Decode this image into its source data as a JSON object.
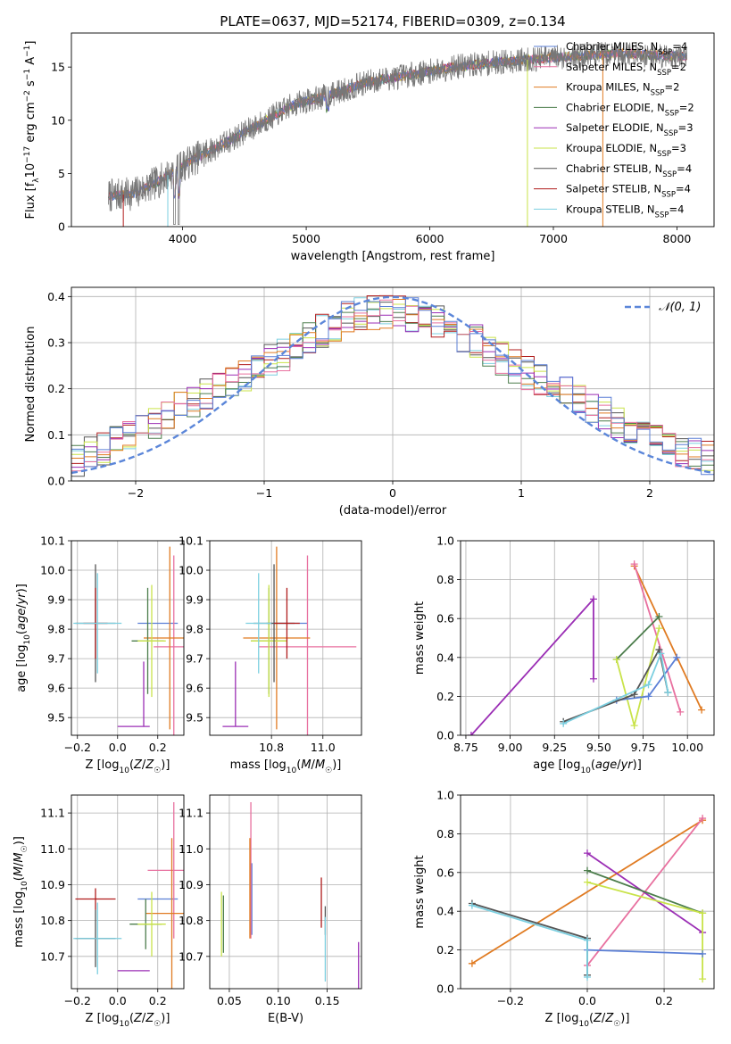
{
  "colors": {
    "Chabrier MILES": "#5b7fd6",
    "Salpeter MILES": "#e8709f",
    "Kroupa MILES": "#e07b22",
    "Chabrier ELODIE": "#4c7d4c",
    "Salpeter ELODIE": "#9b2fb5",
    "Kroupa ELODIE": "#c9e34a",
    "Chabrier STELIB": "#555555",
    "Salpeter STELIB": "#b01c1c",
    "Kroupa STELIB": "#7ccfe0",
    "gauss": "#5b86d9"
  },
  "chart_data": [
    {
      "id": "spectrum",
      "type": "line",
      "title": "PLATE=0637, MJD=52174, FIBERID=0309, z=0.134",
      "xlabel": "wavelength [Angstrom, rest frame]",
      "ylabel": "Flux [f",
      "xlim": [
        3100,
        8300
      ],
      "ylim": [
        0,
        18.2
      ],
      "xticks": [
        "4000",
        "5000",
        "6000",
        "7000",
        "8000"
      ],
      "yticks": [
        "0",
        "5",
        "10",
        "15"
      ],
      "grid": false,
      "legend_position": "right",
      "legend": [
        {
          "name": "Chabrier MILES",
          "nssp": "4"
        },
        {
          "name": "Salpeter MILES",
          "nssp": "2"
        },
        {
          "name": "Kroupa MILES",
          "nssp": "2"
        },
        {
          "name": "Chabrier ELODIE",
          "nssp": "2"
        },
        {
          "name": "Salpeter ELODIE",
          "nssp": "3"
        },
        {
          "name": "Kroupa ELODIE",
          "nssp": "3"
        },
        {
          "name": "Chabrier STELIB",
          "nssp": "4"
        },
        {
          "name": "Salpeter STELIB",
          "nssp": "4"
        },
        {
          "name": "Kroupa STELIB",
          "nssp": "4"
        }
      ],
      "observed_flux_shape": [
        [
          3400,
          2.9
        ],
        [
          3600,
          3.1
        ],
        [
          3800,
          4.2
        ],
        [
          3950,
          5.4
        ],
        [
          4100,
          6.4
        ],
        [
          4300,
          7.6
        ],
        [
          4600,
          9.5
        ],
        [
          4900,
          11.5
        ],
        [
          5200,
          12.4
        ],
        [
          5500,
          13.6
        ],
        [
          5800,
          14.2
        ],
        [
          6200,
          15.0
        ],
        [
          6600,
          15.5
        ],
        [
          7000,
          15.9
        ],
        [
          7500,
          16.3
        ],
        [
          8000,
          16.0
        ]
      ]
    },
    {
      "id": "residuals",
      "type": "line",
      "xlabel": "(data-model)/error",
      "ylabel": "Normed distribution",
      "xlim": [
        -2.5,
        2.5
      ],
      "ylim": [
        0,
        0.42
      ],
      "xticks": [
        "−2",
        "−1",
        "0",
        "1",
        "2"
      ],
      "yticks": [
        "0.0",
        "0.1",
        "0.2",
        "0.3",
        "0.4"
      ],
      "grid": true,
      "legend_position": "top-right",
      "legend_label": "𝒩(0, 1)",
      "histogram_envelope": [
        [
          -2.5,
          0.04
        ],
        [
          -2.0,
          0.1
        ],
        [
          -1.5,
          0.18
        ],
        [
          -1.0,
          0.25
        ],
        [
          -0.6,
          0.32
        ],
        [
          -0.3,
          0.36
        ],
        [
          0.0,
          0.37
        ],
        [
          0.3,
          0.35
        ],
        [
          0.6,
          0.31
        ],
        [
          1.0,
          0.24
        ],
        [
          1.5,
          0.17
        ],
        [
          2.0,
          0.09
        ],
        [
          2.5,
          0.045
        ]
      ]
    },
    {
      "id": "age-vs-Z",
      "type": "scatter",
      "xlabel": "Z [log",
      "ylabel": "age  [log",
      "xlim": [
        -0.23,
        0.33
      ],
      "ylim": [
        9.44,
        10.1
      ],
      "xticks": [
        "−0.2",
        "0.0",
        "0.2"
      ],
      "yticks": [
        "9.5",
        "9.6",
        "9.7",
        "9.8",
        "9.9",
        "10.0",
        "10.1"
      ],
      "grid": true,
      "points": [
        {
          "series": "Chabrier MILES",
          "x": 0.2,
          "y": 9.82,
          "xerr": 0.1,
          "yerr": 0.0
        },
        {
          "series": "Salpeter MILES",
          "x": 0.28,
          "y": 9.74,
          "xerr": 0.1,
          "yerr": 0.31
        },
        {
          "series": "Kroupa MILES",
          "x": 0.26,
          "y": 9.77,
          "xerr": 0.13,
          "yerr": 0.31
        },
        {
          "series": "Chabrier ELODIE",
          "x": 0.15,
          "y": 9.76,
          "xerr": 0.08,
          "yerr": 0.18
        },
        {
          "series": "Salpeter ELODIE",
          "x": 0.08,
          "y": 9.47,
          "xerr": 0.08,
          "yerr": 0.0
        },
        {
          "series": "Salpeter ELODIE",
          "x": 0.13,
          "y": 9.58,
          "xerr": 0.0,
          "yerr": 0.11
        },
        {
          "series": "Kroupa ELODIE",
          "x": 0.17,
          "y": 9.76,
          "xerr": 0.07,
          "yerr": 0.19
        },
        {
          "series": "Chabrier STELIB",
          "x": -0.11,
          "y": 9.82,
          "xerr": 0.1,
          "yerr": 0.2
        },
        {
          "series": "Salpeter STELIB",
          "x": -0.11,
          "y": 9.82,
          "xerr": 0.06,
          "yerr": 0.12
        },
        {
          "series": "Kroupa STELIB",
          "x": -0.1,
          "y": 9.82,
          "xerr": 0.12,
          "yerr": 0.17
        }
      ]
    },
    {
      "id": "age-vs-mass",
      "type": "scatter",
      "xlabel": "mass [log",
      "ylabel": "",
      "xlim": [
        10.56,
        11.15
      ],
      "ylim": [
        9.44,
        10.1
      ],
      "xticks": [
        "10.8",
        "11.0"
      ],
      "yticks": [
        "9.5",
        "9.6",
        "9.7",
        "9.8",
        "9.9",
        "10.0",
        "10.1"
      ],
      "grid": true,
      "points": [
        {
          "series": "Chabrier MILES",
          "x": 10.86,
          "y": 9.82,
          "xerr": 0.08,
          "yerr": 0.0
        },
        {
          "series": "Salpeter MILES",
          "x": 10.94,
          "y": 9.74,
          "xerr": 0.19,
          "yerr": 0.31
        },
        {
          "series": "Kroupa MILES",
          "x": 10.82,
          "y": 9.77,
          "xerr": 0.13,
          "yerr": 0.31
        },
        {
          "series": "Chabrier ELODIE",
          "x": 10.79,
          "y": 9.76,
          "xerr": 0.07,
          "yerr": 0.18
        },
        {
          "series": "Salpeter ELODIE",
          "x": 10.66,
          "y": 9.47,
          "xerr": 0.05,
          "yerr": 0.0
        },
        {
          "series": "Salpeter ELODIE",
          "x": 10.66,
          "y": 9.58,
          "xerr": 0.0,
          "yerr": 0.11
        },
        {
          "series": "Kroupa ELODIE",
          "x": 10.79,
          "y": 9.76,
          "xerr": 0.07,
          "yerr": 0.19
        },
        {
          "series": "Chabrier STELIB",
          "x": 10.81,
          "y": 9.82,
          "xerr": 0.08,
          "yerr": 0.2
        },
        {
          "series": "Salpeter STELIB",
          "x": 10.86,
          "y": 9.82,
          "xerr": 0.05,
          "yerr": 0.12
        },
        {
          "series": "Kroupa STELIB",
          "x": 10.75,
          "y": 9.82,
          "xerr": 0.05,
          "yerr": 0.17
        }
      ]
    },
    {
      "id": "weight-vs-age",
      "type": "line",
      "xlabel": "age  [log",
      "ylabel": "mass weight",
      "xlim": [
        8.72,
        10.15
      ],
      "ylim": [
        0.0,
        1.0
      ],
      "xticks": [
        "8.75",
        "9.00",
        "9.25",
        "9.50",
        "9.75",
        "10.00"
      ],
      "yticks": [
        "0.0",
        "0.2",
        "0.4",
        "0.6",
        "0.8",
        "1.0"
      ],
      "grid": true,
      "series": [
        {
          "name": "Kroupa MILES",
          "x": [
            9.7,
            10.08
          ],
          "y": [
            0.87,
            0.13
          ]
        },
        {
          "name": "Salpeter MILES",
          "x": [
            9.7,
            9.96
          ],
          "y": [
            0.88,
            0.12
          ]
        },
        {
          "name": "Chabrier ELODIE",
          "x": [
            9.6,
            9.84
          ],
          "y": [
            0.39,
            0.61
          ]
        },
        {
          "name": "Kroupa ELODIE",
          "x": [
            9.6,
            9.7,
            9.84
          ],
          "y": [
            0.39,
            0.05,
            0.55
          ]
        },
        {
          "name": "Salpeter ELODIE",
          "x": [
            8.78,
            9.47,
            9.47
          ],
          "y": [
            0.0,
            0.7,
            0.29
          ]
        },
        {
          "name": "Chabrier MILES",
          "x": [
            9.6,
            9.78,
            9.94
          ],
          "y": [
            0.18,
            0.2,
            0.4
          ]
        },
        {
          "name": "Chabrier STELIB",
          "x": [
            9.3,
            9.7,
            9.84,
            9.89
          ],
          "y": [
            0.07,
            0.21,
            0.44,
            0.22
          ]
        },
        {
          "name": "Kroupa STELIB",
          "x": [
            9.3,
            9.78,
            9.85,
            9.89
          ],
          "y": [
            0.06,
            0.26,
            0.42,
            0.22
          ]
        }
      ]
    },
    {
      "id": "mass-vs-Z",
      "type": "scatter",
      "xlabel": "Z [log",
      "ylabel": "mass [log",
      "xlim": [
        -0.23,
        0.33
      ],
      "ylim": [
        10.61,
        11.15
      ],
      "xticks": [
        "−0.2",
        "0.0",
        "0.2"
      ],
      "yticks": [
        "10.7",
        "10.8",
        "10.9",
        "11.0",
        "11.1"
      ],
      "grid": true,
      "points": [
        {
          "series": "Chabrier MILES",
          "x": 0.2,
          "y": 10.86,
          "xerr": 0.1,
          "yerr": 0.0
        },
        {
          "series": "Salpeter MILES",
          "x": 0.28,
          "y": 10.94,
          "xerr": 0.13,
          "yerr": 0.19
        },
        {
          "series": "Kroupa MILES",
          "x": 0.27,
          "y": 10.82,
          "xerr": 0.13,
          "yerr": 0.21
        },
        {
          "series": "Chabrier ELODIE",
          "x": 0.14,
          "y": 10.79,
          "xerr": 0.08,
          "yerr": 0.07
        },
        {
          "series": "Salpeter ELODIE",
          "x": 0.08,
          "y": 10.66,
          "xerr": 0.08,
          "yerr": 0.0
        },
        {
          "series": "Kroupa ELODIE",
          "x": 0.17,
          "y": 10.79,
          "xerr": 0.07,
          "yerr": 0.09
        },
        {
          "series": "Chabrier STELIB",
          "x": -0.11,
          "y": 10.75,
          "xerr": 0.1,
          "yerr": 0.08
        },
        {
          "series": "Salpeter STELIB",
          "x": -0.11,
          "y": 10.86,
          "xerr": 0.1,
          "yerr": 0.03
        },
        {
          "series": "Kroupa STELIB",
          "x": -0.1,
          "y": 10.75,
          "xerr": 0.12,
          "yerr": 0.1
        }
      ]
    },
    {
      "id": "mass-vs-ebv",
      "type": "scatter",
      "xlabel": "E(B-V)",
      "ylabel": "",
      "xlim": [
        0.03,
        0.185
      ],
      "ylim": [
        10.61,
        11.15
      ],
      "xticks": [
        "0.05",
        "0.10",
        "0.15"
      ],
      "yticks": [
        "10.7",
        "10.8",
        "10.9",
        "11.0",
        "11.1"
      ],
      "grid": true,
      "points": [
        {
          "series": "Chabrier MILES",
          "x": 0.073,
          "y": 10.86,
          "xerr": 0.0,
          "yerr": 0.1
        },
        {
          "series": "Salpeter MILES",
          "x": 0.072,
          "y": 10.94,
          "xerr": 0.0,
          "yerr": 0.19
        },
        {
          "series": "Kroupa MILES",
          "x": 0.071,
          "y": 10.89,
          "xerr": 0.0,
          "yerr": 0.14
        },
        {
          "series": "Chabrier ELODIE",
          "x": 0.044,
          "y": 10.79,
          "xerr": 0.0,
          "yerr": 0.08
        },
        {
          "series": "Salpeter ELODIE",
          "x": 0.182,
          "y": 10.67,
          "xerr": 0.0,
          "yerr": 0.07
        },
        {
          "series": "Kroupa ELODIE",
          "x": 0.042,
          "y": 10.79,
          "xerr": 0.0,
          "yerr": 0.09
        },
        {
          "series": "Chabrier STELIB",
          "x": 0.148,
          "y": 10.8,
          "xerr": 0.0,
          "yerr": 0.04
        },
        {
          "series": "Salpeter STELIB",
          "x": 0.144,
          "y": 10.85,
          "xerr": 0.0,
          "yerr": 0.07
        },
        {
          "series": "Kroupa STELIB",
          "x": 0.148,
          "y": 10.72,
          "xerr": 0.0,
          "yerr": 0.09
        }
      ]
    },
    {
      "id": "weight-vs-Z",
      "type": "line",
      "xlabel": "Z [log",
      "ylabel": "mass weight",
      "xlim": [
        -0.33,
        0.33
      ],
      "ylim": [
        0.0,
        1.0
      ],
      "xticks": [
        "−0.2",
        "0.0",
        "0.2"
      ],
      "yticks": [
        "0.0",
        "0.2",
        "0.4",
        "0.6",
        "0.8",
        "1.0"
      ],
      "grid": true,
      "series": [
        {
          "name": "Kroupa MILES",
          "x": [
            -0.3,
            0.3
          ],
          "y": [
            0.13,
            0.87
          ]
        },
        {
          "name": "Salpeter MILES",
          "x": [
            0.0,
            0.3
          ],
          "y": [
            0.12,
            0.88
          ]
        },
        {
          "name": "Salpeter ELODIE",
          "x": [
            0.0,
            0.3
          ],
          "y": [
            0.7,
            0.29
          ]
        },
        {
          "name": "Chabrier ELODIE",
          "x": [
            0.0,
            0.3
          ],
          "y": [
            0.61,
            0.39
          ]
        },
        {
          "name": "Kroupa ELODIE",
          "x": [
            0.0,
            0.3,
            0.3
          ],
          "y": [
            0.55,
            0.39,
            0.05
          ]
        },
        {
          "name": "Chabrier MILES",
          "x": [
            0.0,
            0.3
          ],
          "y": [
            0.2,
            0.18
          ]
        },
        {
          "name": "Chabrier STELIB",
          "x": [
            -0.3,
            0.0,
            0.0
          ],
          "y": [
            0.44,
            0.26,
            0.07
          ]
        },
        {
          "name": "Kroupa STELIB",
          "x": [
            -0.3,
            0.0,
            0.0
          ],
          "y": [
            0.43,
            0.25,
            0.06
          ]
        }
      ]
    }
  ]
}
